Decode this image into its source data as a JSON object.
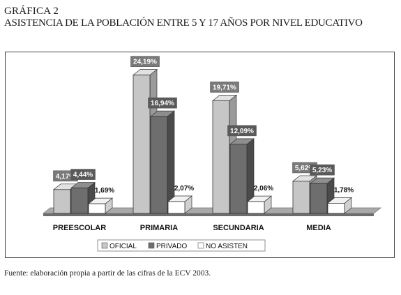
{
  "header": {
    "label": "GRÁFICA 2",
    "title": "ASISTENCIA DE LA POBLACIÓN ENTRE 5 Y 17 AÑOS  POR NIVEL EDUCATIVO"
  },
  "source": "Fuente: elaboración propia a partir de las cifras de la ECV 2003.",
  "chart_data": {
    "type": "bar",
    "title": "ASISTENCIA DE LA POBLACIÓN ENTRE 5 Y 17 AÑOS  POR NIVEL EDUCATIVO",
    "categories": [
      "PREESCOLAR",
      "PRIMARIA",
      "SECUNDARIA",
      "MEDIA"
    ],
    "series": [
      {
        "name": "OFICIAL",
        "values": [
          4.17,
          24.19,
          19.71,
          5.62
        ],
        "labels": [
          "4,17%",
          "24,19%",
          "19,71%",
          "5,62%"
        ],
        "color": "#c6c6c6",
        "side": "#9a9a9a",
        "top": "#e2e2e2"
      },
      {
        "name": "PRIVADO",
        "values": [
          4.44,
          16.94,
          12.09,
          5.23
        ],
        "labels": [
          "4,44%",
          "16,94%",
          "12,09%",
          "5,23%"
        ],
        "color": "#6e6e6e",
        "side": "#4a4a4a",
        "top": "#8e8e8e"
      },
      {
        "name": "NO ASISTEN",
        "values": [
          1.69,
          2.07,
          2.06,
          1.78
        ],
        "labels": [
          "1,69%",
          "2,07%",
          "2,06%",
          "1,78%"
        ],
        "color": "#ffffff",
        "side": "#d0d0d0",
        "top": "#f2f2f2"
      }
    ],
    "xlabel": "",
    "ylabel": "",
    "ylim": [
      0,
      25
    ],
    "grid": false,
    "legend": "bottom-center",
    "three_d": true
  }
}
